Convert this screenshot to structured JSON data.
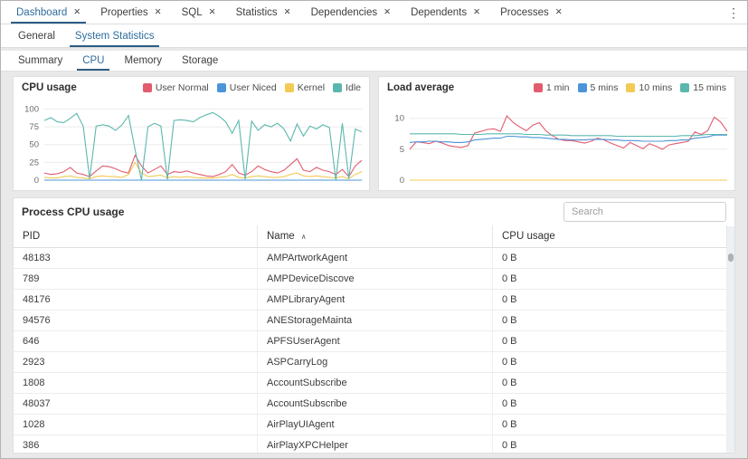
{
  "tabs": {
    "close_icon": "✕",
    "overflow_menu_icon": "⋮",
    "items": [
      {
        "label": "Dashboard",
        "active": true
      },
      {
        "label": "Properties",
        "active": false
      },
      {
        "label": "SQL",
        "active": false
      },
      {
        "label": "Statistics",
        "active": false
      },
      {
        "label": "Dependencies",
        "active": false
      },
      {
        "label": "Dependents",
        "active": false
      },
      {
        "label": "Processes",
        "active": false
      }
    ]
  },
  "panel_tabs": {
    "items": [
      {
        "label": "General",
        "active": false
      },
      {
        "label": "System Statistics",
        "active": true
      }
    ]
  },
  "stat_tabs": {
    "items": [
      {
        "label": "Summary",
        "active": false
      },
      {
        "label": "CPU",
        "active": true
      },
      {
        "label": "Memory",
        "active": false
      },
      {
        "label": "Storage",
        "active": false
      }
    ]
  },
  "colors": {
    "accent_blue": "#2e6d9d",
    "series_red": "#e25c6e",
    "series_blue": "#4c94d8",
    "series_yellow": "#f2ca55",
    "series_teal": "#5bb7ad"
  },
  "search": {
    "placeholder": "Search"
  },
  "process_table": {
    "title": "Process CPU usage",
    "columns": [
      {
        "label": "PID",
        "sort_icon": ""
      },
      {
        "label": "Name",
        "sort_icon": "∧"
      },
      {
        "label": "CPU usage",
        "sort_icon": ""
      }
    ],
    "rows": [
      [
        "48183",
        "AMPArtworkAgent",
        "0 B"
      ],
      [
        "789",
        "AMPDeviceDiscove",
        "0 B"
      ],
      [
        "48176",
        "AMPLibraryAgent",
        "0 B"
      ],
      [
        "94576",
        "ANEStorageMainta",
        "0 B"
      ],
      [
        "646",
        "APFSUserAgent",
        "0 B"
      ],
      [
        "2923",
        "ASPCarryLog",
        "0 B"
      ],
      [
        "1808",
        "AccountSubscribe",
        "0 B"
      ],
      [
        "48037",
        "AccountSubscribe",
        "0 B"
      ],
      [
        "1028",
        "AirPlayUIAgent",
        "0 B"
      ],
      [
        "386",
        "AirPlayXPCHelper",
        "0 B"
      ]
    ]
  },
  "chart_data": [
    {
      "type": "line",
      "title": "CPU usage",
      "ylim": [
        0,
        100
      ],
      "yticks": [
        0,
        25,
        50,
        75,
        100
      ],
      "grid": true,
      "legend_position": "top-right",
      "series": [
        {
          "name": "User Normal",
          "color": "#e25c6e",
          "values": [
            10,
            8,
            9,
            12,
            18,
            10,
            8,
            5,
            13,
            20,
            19,
            16,
            12,
            10,
            35,
            20,
            10,
            15,
            20,
            8,
            12,
            11,
            13,
            10,
            8,
            6,
            5,
            8,
            12,
            22,
            10,
            7,
            12,
            20,
            15,
            12,
            10,
            14,
            22,
            30,
            14,
            12,
            18,
            14,
            12,
            8,
            15,
            5,
            20,
            28
          ]
        },
        {
          "name": "User Niced",
          "color": "#4c94d8",
          "values": [
            0,
            0,
            0,
            0,
            0,
            0,
            0,
            0,
            0,
            0,
            0,
            0,
            0,
            0,
            0,
            0,
            0,
            0,
            0,
            0,
            0,
            0,
            0,
            0,
            0,
            0,
            0,
            0,
            0,
            0,
            0,
            0,
            0,
            0,
            0,
            0,
            0,
            0,
            0,
            0,
            0,
            0,
            0,
            0,
            0,
            0,
            0,
            0,
            0,
            0
          ]
        },
        {
          "name": "Kernel",
          "color": "#f2ca55",
          "values": [
            4,
            3,
            3,
            5,
            6,
            4,
            3,
            2,
            5,
            6,
            5,
            5,
            4,
            8,
            25,
            10,
            5,
            6,
            7,
            3,
            5,
            4,
            5,
            4,
            3,
            3,
            3,
            4,
            5,
            8,
            4,
            3,
            5,
            6,
            5,
            4,
            4,
            5,
            8,
            10,
            6,
            5,
            6,
            5,
            4,
            3,
            5,
            2,
            8,
            12
          ]
        },
        {
          "name": "Idle",
          "color": "#5bb7ad",
          "values": [
            84,
            88,
            82,
            81,
            87,
            94,
            76,
            2,
            76,
            78,
            76,
            70,
            78,
            91,
            43,
            0,
            75,
            80,
            76,
            1,
            84,
            85,
            84,
            82,
            88,
            92,
            95,
            90,
            82,
            66,
            84,
            1,
            83,
            70,
            78,
            75,
            80,
            72,
            55,
            79,
            62,
            76,
            72,
            78,
            74,
            0,
            80,
            2,
            72,
            68
          ]
        }
      ]
    },
    {
      "type": "line",
      "title": "Load average",
      "ylim": [
        0,
        11.5
      ],
      "yticks": [
        0,
        5,
        10
      ],
      "grid": true,
      "legend_position": "top-right",
      "series": [
        {
          "name": "1 min",
          "color": "#e25c6e",
          "values": [
            5.0,
            6.2,
            6.1,
            5.9,
            6.3,
            6.0,
            5.6,
            5.4,
            5.3,
            5.6,
            7.6,
            7.9,
            8.2,
            8.3,
            7.9,
            10.4,
            9.3,
            8.6,
            8.0,
            8.9,
            9.3,
            8.0,
            7.2,
            6.6,
            6.4,
            6.4,
            6.2,
            6.0,
            6.3,
            6.8,
            6.5,
            6.0,
            5.6,
            5.2,
            6.1,
            5.6,
            5.1,
            5.9,
            5.5,
            5.0,
            5.7,
            5.9,
            6.1,
            6.3,
            7.8,
            7.4,
            8.0,
            10.2,
            9.4,
            7.9
          ]
        },
        {
          "name": "5 mins",
          "color": "#4c94d8",
          "values": [
            6.1,
            6.2,
            6.2,
            6.3,
            6.3,
            6.2,
            6.2,
            6.1,
            6.1,
            6.2,
            6.5,
            6.6,
            6.7,
            6.8,
            6.8,
            7.1,
            7.1,
            7.0,
            7.0,
            6.9,
            6.9,
            6.8,
            6.7,
            6.6,
            6.6,
            6.5,
            6.5,
            6.5,
            6.6,
            6.6,
            6.6,
            6.5,
            6.5,
            6.4,
            6.4,
            6.4,
            6.3,
            6.3,
            6.3,
            6.3,
            6.4,
            6.4,
            6.5,
            6.5,
            6.8,
            6.9,
            7.0,
            7.3,
            7.3,
            7.3
          ]
        },
        {
          "name": "10 mins",
          "color": "#f2ca55",
          "values": [
            0,
            0,
            0,
            0,
            0,
            0,
            0,
            0,
            0,
            0,
            0,
            0,
            0,
            0,
            0,
            0,
            0,
            0,
            0,
            0,
            0,
            0,
            0,
            0,
            0,
            0,
            0,
            0,
            0,
            0,
            0,
            0,
            0,
            0,
            0,
            0,
            0,
            0,
            0,
            0,
            0,
            0,
            0,
            0,
            0,
            0,
            0,
            0,
            0,
            0
          ]
        },
        {
          "name": "15 mins",
          "color": "#5bb7ad",
          "values": [
            7.5,
            7.5,
            7.5,
            7.5,
            7.5,
            7.5,
            7.5,
            7.5,
            7.4,
            7.4,
            7.4,
            7.4,
            7.5,
            7.5,
            7.5,
            7.5,
            7.5,
            7.5,
            7.4,
            7.4,
            7.4,
            7.3,
            7.3,
            7.3,
            7.3,
            7.2,
            7.2,
            7.2,
            7.2,
            7.2,
            7.2,
            7.2,
            7.1,
            7.1,
            7.1,
            7.1,
            7.1,
            7.1,
            7.1,
            7.1,
            7.1,
            7.1,
            7.2,
            7.2,
            7.2,
            7.3,
            7.4,
            7.4,
            7.4,
            7.4
          ]
        }
      ]
    }
  ]
}
